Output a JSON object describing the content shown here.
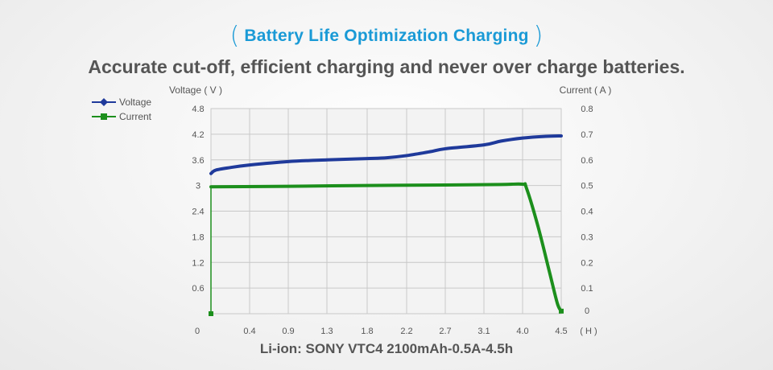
{
  "header": {
    "title": "Battery Life Optimization Charging",
    "subtitle": "Accurate cut-off, efficient charging and never over charge batteries."
  },
  "footer": {
    "caption": "Li-ion: SONY VTC4 2100mAh-0.5A-4.5h"
  },
  "colors": {
    "accent": "#1a9ad6",
    "voltage": "#1f3a9b",
    "current": "#1c8f1c",
    "grid": "#c8c8c8"
  },
  "chart_data": {
    "type": "line",
    "ylabel_left": "Voltage ( V )",
    "ylabel_right": "Current ( A )",
    "x_unit": "( H )",
    "x_ticks": [
      "0",
      "0.4",
      "0.9",
      "1.3",
      "1.8",
      "2.2",
      "2.7",
      "3.1",
      "4.0",
      "4.5"
    ],
    "y_left_ticks": [
      "0.6",
      "1.2",
      "1.8",
      "2.4",
      "3",
      "3.6",
      "4.2",
      "4.8"
    ],
    "y_right_ticks": [
      "0",
      "0.1",
      "0.2",
      "0.3",
      "0.4",
      "0.5",
      "0.6",
      "0.7",
      "0.8"
    ],
    "ylim_left": [
      0,
      4.8
    ],
    "ylim_right": [
      0,
      0.8
    ],
    "grid": true,
    "legend": "top-left",
    "series": [
      {
        "name": "Voltage",
        "axis": "left",
        "marker": "diamond",
        "x": [
          0,
          0.05,
          0.2,
          0.4,
          0.9,
          1.3,
          1.8,
          2.0,
          2.2,
          2.5,
          2.7,
          3.1,
          3.5,
          4.0,
          4.3,
          4.5
        ],
        "y": [
          3.28,
          3.36,
          3.42,
          3.48,
          3.56,
          3.6,
          3.63,
          3.65,
          3.7,
          3.79,
          3.86,
          3.95,
          4.04,
          4.11,
          4.15,
          4.16
        ]
      },
      {
        "name": "Current",
        "axis": "right",
        "marker": "square",
        "x": [
          0,
          0,
          0.9,
          1.8,
          2.7,
          3.5,
          4.0,
          4.05,
          4.2,
          4.35,
          4.45,
          4.5
        ],
        "y": [
          0,
          0.495,
          0.497,
          0.5,
          0.502,
          0.504,
          0.505,
          0.49,
          0.34,
          0.16,
          0.04,
          0.01
        ]
      }
    ]
  }
}
